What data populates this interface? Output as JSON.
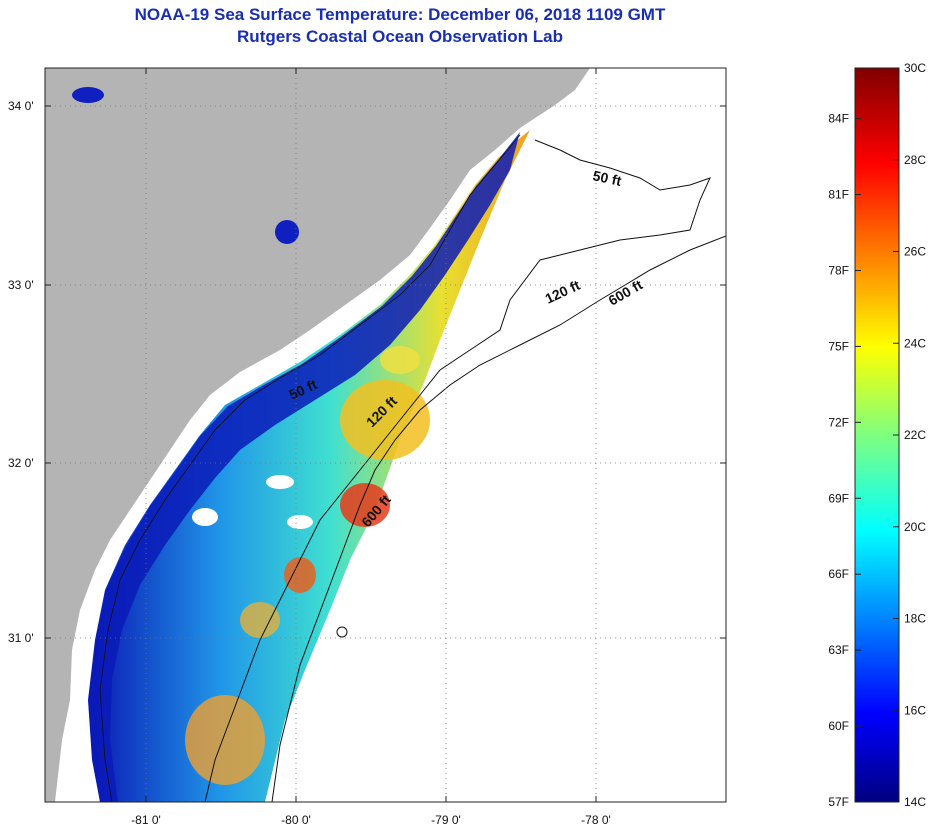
{
  "header": {
    "title": "NOAA-19 Sea Surface Temperature:  December 06, 2018 1109 GMT",
    "subtitle": "Rutgers Coastal Ocean Observation Lab"
  },
  "map": {
    "lat_labels": [
      "34 0'",
      "33 0'",
      "32 0'",
      "31 0'"
    ],
    "lon_labels": [
      "-81 0'",
      "-80 0'",
      "-79 0'",
      "-78 0'"
    ],
    "contours": [
      "50 ft",
      "120 ft",
      "600 ft",
      "50 ft",
      "120 ft",
      "600 ft"
    ]
  },
  "colorbar": {
    "celsius": [
      "30C",
      "28C",
      "26C",
      "24C",
      "22C",
      "20C",
      "18C",
      "16C",
      "14C"
    ],
    "fahrenheit": [
      "84F",
      "81F",
      "78F",
      "75F",
      "72F",
      "69F",
      "66F",
      "63F",
      "60F",
      "57F"
    ]
  },
  "colors": {
    "land": "#b4b4b4",
    "title": "#1a2fb0"
  }
}
